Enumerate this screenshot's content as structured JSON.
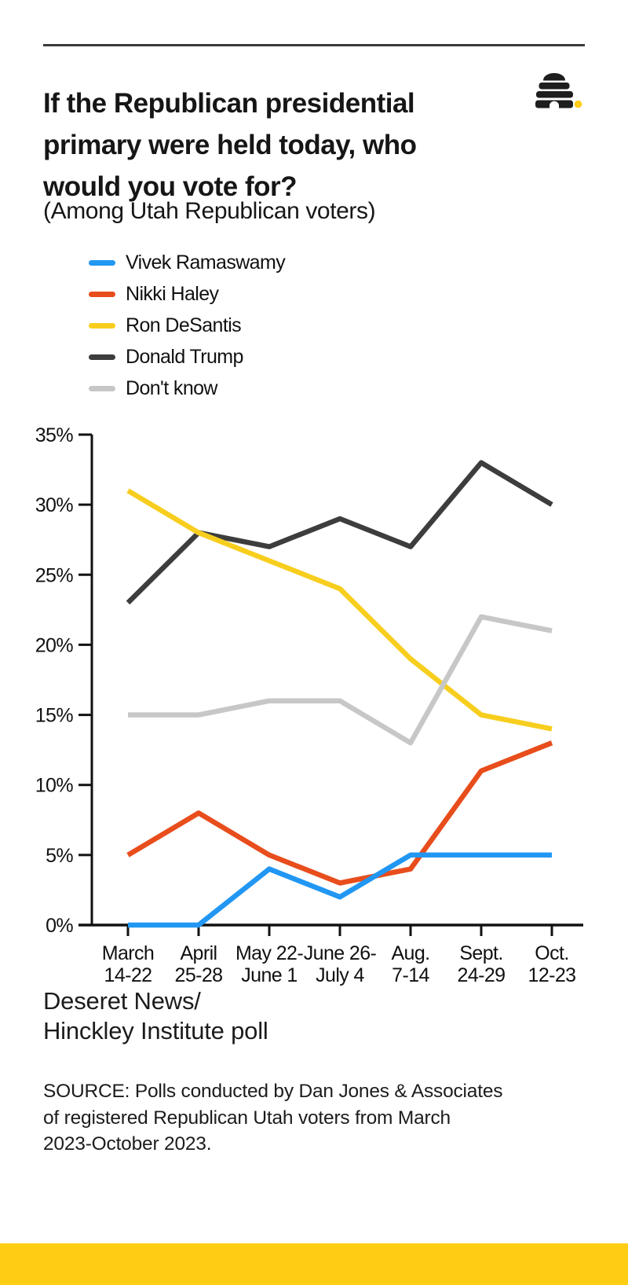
{
  "page": {
    "background_color": "#ffffff",
    "accent_bar_color": "#FFCD14",
    "rule_color": "#3A3A3A"
  },
  "header": {
    "title": "If the Republican presidential\nprimary were held today, who\nwould you vote for?",
    "subtitle": "(Among Utah Republican voters)",
    "logo": {
      "name": "deseret-news-beehive-logo",
      "beehive_color": "#1E1E1E",
      "dot_color": "#FFCD14"
    }
  },
  "chart_data": {
    "type": "line",
    "title": "If the Republican presidential primary were held today, who would you vote for?",
    "subtitle": "(Among Utah Republican voters)",
    "categories": [
      {
        "line1": "March",
        "line2": "14-22"
      },
      {
        "line1": "April",
        "line2": "25-28"
      },
      {
        "line1": "May 22-",
        "line2": "June 1"
      },
      {
        "line1": "June 26-",
        "line2": "July 4"
      },
      {
        "line1": "Aug.",
        "line2": "7-14"
      },
      {
        "line1": "Sept.",
        "line2": "24-29"
      },
      {
        "line1": "Oct.",
        "line2": "12-23"
      }
    ],
    "series": [
      {
        "name": "Vivek Ramaswamy",
        "color": "#2197F3",
        "values": [
          0,
          0,
          4,
          2,
          5,
          5,
          5
        ]
      },
      {
        "name": "Nikki Haley",
        "color": "#E84D1C",
        "values": [
          5,
          8,
          5,
          3,
          4,
          11,
          13
        ]
      },
      {
        "name": "Ron DeSantis",
        "color": "#F8CE1E",
        "values": [
          31,
          28,
          26,
          24,
          19,
          15,
          14
        ]
      },
      {
        "name": "Donald Trump",
        "color": "#3D3D3D",
        "values": [
          23,
          28,
          27,
          29,
          27,
          33,
          30
        ]
      },
      {
        "name": "Don't know",
        "color": "#C7C7C7",
        "values": [
          15,
          15,
          16,
          16,
          13,
          22,
          21
        ]
      }
    ],
    "xlabel": "",
    "ylabel": "",
    "ylim": [
      0,
      35
    ],
    "ytick_step": 5,
    "ytick_labels": [
      "0%",
      "5%",
      "10%",
      "15%",
      "20%",
      "25%",
      "30%",
      "35%"
    ],
    "grid": false,
    "legend_position": "top-left",
    "draw_order": [
      3,
      2,
      4,
      1,
      0
    ],
    "axis_color": "#111111"
  },
  "footer": {
    "attribution": "Deseret News/\nHinckley Institute poll",
    "source": "SOURCE: Polls conducted by Dan Jones & Associates\nof registered Republican Utah voters from March\n2023-October 2023."
  }
}
